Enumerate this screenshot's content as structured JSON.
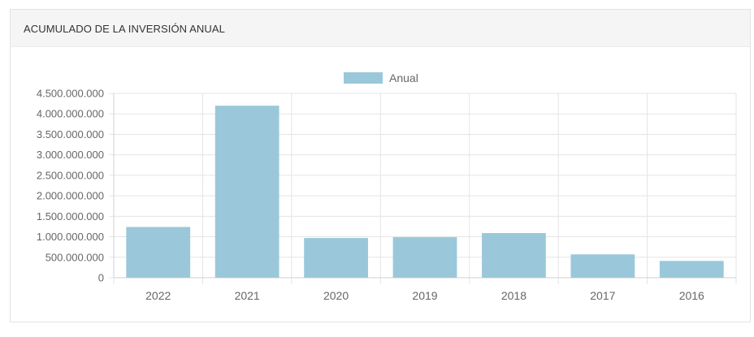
{
  "panel": {
    "title": "ACUMULADO DE LA INVERSIÓN ANUAL"
  },
  "colors": {
    "bar": "#9ac8da",
    "grid": "#e5e5e5",
    "axis_text": "#666666"
  },
  "chart_data": {
    "type": "bar",
    "categories": [
      "2022",
      "2021",
      "2020",
      "2019",
      "2018",
      "2017",
      "2016"
    ],
    "series": [
      {
        "name": "Anual",
        "values": [
          1240000000,
          4200000000,
          970000000,
          990000000,
          1090000000,
          570000000,
          410000000
        ]
      }
    ],
    "yticks": [
      "0",
      "500.000.000",
      "1.000.000.000",
      "1.500.000.000",
      "2.000.000.000",
      "2.500.000.000",
      "3.000.000.000",
      "3.500.000.000",
      "4.000.000.000",
      "4.500.000.000"
    ],
    "ylim": [
      0,
      4500000000
    ],
    "legend_position": "top-center",
    "grid": true
  }
}
